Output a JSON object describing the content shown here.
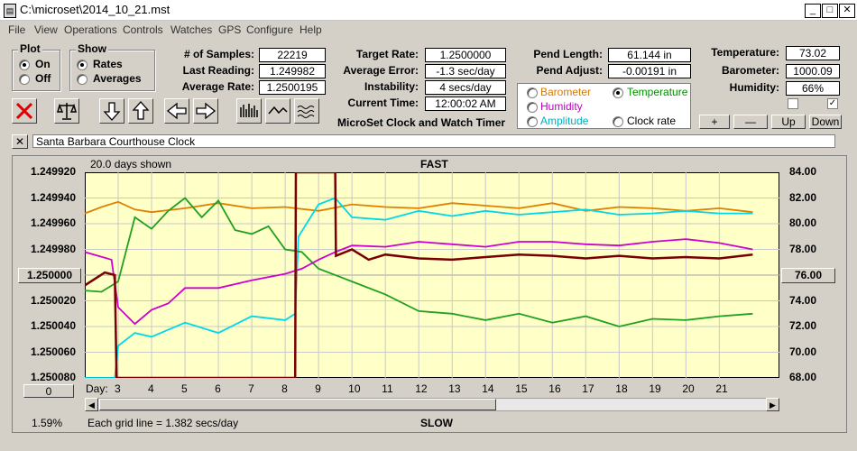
{
  "window": {
    "title": "C:\\microset\\2014_10_21.mst"
  },
  "menu": [
    "File",
    "View",
    "Operations",
    "Controls",
    "Watches",
    "GPS",
    "Configure",
    "Help"
  ],
  "plot_group": {
    "title": "Plot",
    "options": [
      "On",
      "Off"
    ],
    "selected": "On"
  },
  "show_group": {
    "title": "Show",
    "options": [
      "Rates",
      "Averages"
    ],
    "selected": "Rates"
  },
  "stats": {
    "samples_label": "# of Samples:",
    "samples": "22219",
    "last_label": "Last Reading:",
    "last": "1.249982",
    "avg_rate_label": "Average Rate:",
    "avg_rate": "1.2500195",
    "target_label": "Target Rate:",
    "target": "1.2500000",
    "avg_err_label": "Average Error:",
    "avg_err": "-1.3 sec/day",
    "instab_label": "Instability:",
    "instab": "4 secs/day",
    "time_label": "Current Time:",
    "time": "12:00:02 AM",
    "pend_len_label": "Pend Length:",
    "pend_len": "61.144 in",
    "pend_adj_label": "Pend Adjust:",
    "pend_adj": "-0.00191 in",
    "temp_label": "Temperature:",
    "temp": "73.02",
    "baro_label": "Barometer:",
    "baro": "1000.09",
    "hum_label": "Humidity:",
    "hum": "66%"
  },
  "app_caption": "MicroSet Clock and Watch Timer",
  "aux_options": [
    {
      "label": "Barometer",
      "color": "#d87800",
      "selected": false
    },
    {
      "label": "Temperature",
      "color": "#009000",
      "selected": true
    },
    {
      "label": "Humidity",
      "color": "#c000c0",
      "selected": false
    },
    {
      "label": "Clock rate",
      "color": "#000000",
      "selected": false
    },
    {
      "label": "Amplitude",
      "color": "#00b0c0",
      "selected": false
    }
  ],
  "small_buttons": {
    "plus": "+",
    "minus": "—",
    "up": "Up",
    "down": "Down"
  },
  "description": "Santa Barbara Courthouse Clock",
  "chart": {
    "days_shown": "20.0 days shown",
    "fast_label": "FAST",
    "slow_label": "SLOW",
    "grid_note": "Each grid line = 1.382 secs/day",
    "percent": "1.59%",
    "center_left": "1.250000",
    "center_right": "76.00",
    "zero_button": "0",
    "day_label": "Day:"
  },
  "chart_data": {
    "type": "line",
    "y_left_ticks": [
      "1.249920",
      "1.249940",
      "1.249960",
      "1.249980",
      "1.250000",
      "1.250020",
      "1.250040",
      "1.250060",
      "1.250080"
    ],
    "y_right_ticks": [
      "84.00",
      "82.00",
      "80.00",
      "78.00",
      "76.00",
      "74.00",
      "72.00",
      "70.00",
      "68.00"
    ],
    "x_ticks": [
      "3",
      "4",
      "5",
      "6",
      "7",
      "8",
      "9",
      "10",
      "11",
      "12",
      "13",
      "14",
      "15",
      "16",
      "17",
      "18",
      "19",
      "20",
      "21"
    ],
    "xlim": [
      2,
      22.8
    ],
    "y_left_range": [
      1.24992,
      1.25008
    ],
    "y_right_range": [
      68,
      84
    ],
    "series": [
      {
        "color": "#e08000",
        "values": [
          [
            2,
            80.8
          ],
          [
            2.5,
            81.3
          ],
          [
            3,
            81.7
          ],
          [
            3.5,
            81.1
          ],
          [
            4,
            80.9
          ],
          [
            5,
            81.2
          ],
          [
            6,
            81.6
          ],
          [
            7,
            81.2
          ],
          [
            8,
            81.3
          ],
          [
            9,
            81.0
          ],
          [
            10,
            81.5
          ],
          [
            11,
            81.3
          ],
          [
            12,
            81.2
          ],
          [
            13,
            81.6
          ],
          [
            14,
            81.4
          ],
          [
            15,
            81.2
          ],
          [
            16,
            81.6
          ],
          [
            17,
            81.0
          ],
          [
            18,
            81.3
          ],
          [
            19,
            81.2
          ],
          [
            20,
            81.0
          ],
          [
            21,
            81.2
          ],
          [
            22,
            80.9
          ]
        ]
      },
      {
        "color": "#00d8e8",
        "values": [
          [
            2,
            68.0
          ],
          [
            2.9,
            68.0
          ],
          [
            3,
            70.5
          ],
          [
            3.5,
            71.5
          ],
          [
            4,
            71.2
          ],
          [
            5,
            72.3
          ],
          [
            6,
            71.5
          ],
          [
            7,
            72.8
          ],
          [
            8,
            72.5
          ],
          [
            8.3,
            73.0
          ],
          [
            8.4,
            79.0
          ],
          [
            9,
            81.5
          ],
          [
            9.5,
            82.0
          ],
          [
            10,
            80.5
          ],
          [
            11,
            80.3
          ],
          [
            12,
            81.0
          ],
          [
            13,
            80.6
          ],
          [
            14,
            81.0
          ],
          [
            15,
            80.7
          ],
          [
            16,
            80.9
          ],
          [
            17,
            81.1
          ],
          [
            18,
            80.7
          ],
          [
            19,
            80.8
          ],
          [
            20,
            81.0
          ],
          [
            21,
            80.8
          ],
          [
            22,
            80.8
          ]
        ]
      },
      {
        "color": "#20a020",
        "values": [
          [
            2,
            74.8
          ],
          [
            2.5,
            74.7
          ],
          [
            3,
            75.5
          ],
          [
            3.5,
            80.5
          ],
          [
            4,
            79.6
          ],
          [
            4.5,
            81.0
          ],
          [
            5,
            82.0
          ],
          [
            5.5,
            80.5
          ],
          [
            6,
            81.8
          ],
          [
            6.5,
            79.5
          ],
          [
            7,
            79.2
          ],
          [
            7.5,
            79.8
          ],
          [
            8,
            78.0
          ],
          [
            8.5,
            77.8
          ],
          [
            9,
            76.5
          ],
          [
            10,
            75.5
          ],
          [
            11,
            74.5
          ],
          [
            12,
            73.2
          ],
          [
            13,
            73.0
          ],
          [
            14,
            72.5
          ],
          [
            15,
            73.0
          ],
          [
            16,
            72.3
          ],
          [
            17,
            72.8
          ],
          [
            18,
            72.0
          ],
          [
            19,
            72.6
          ],
          [
            20,
            72.5
          ],
          [
            21,
            72.8
          ],
          [
            22,
            73.0
          ]
        ]
      },
      {
        "color": "#d000d0",
        "values": [
          [
            2,
            77.8
          ],
          [
            2.8,
            77.2
          ],
          [
            3,
            73.5
          ],
          [
            3.5,
            72.2
          ],
          [
            4,
            73.3
          ],
          [
            4.5,
            73.8
          ],
          [
            5,
            75.0
          ],
          [
            6,
            75.0
          ],
          [
            7,
            75.6
          ],
          [
            8,
            76.1
          ],
          [
            8.5,
            76.5
          ],
          [
            9,
            77.2
          ],
          [
            9.5,
            77.8
          ],
          [
            10,
            78.3
          ],
          [
            11,
            78.2
          ],
          [
            12,
            78.6
          ],
          [
            13,
            78.4
          ],
          [
            14,
            78.2
          ],
          [
            15,
            78.6
          ],
          [
            16,
            78.6
          ],
          [
            17,
            78.4
          ],
          [
            18,
            78.3
          ],
          [
            19,
            78.6
          ],
          [
            20,
            78.8
          ],
          [
            21,
            78.5
          ],
          [
            22,
            78.0
          ]
        ]
      },
      {
        "color": "#780000",
        "values": [
          [
            2,
            75.2
          ],
          [
            2.6,
            76.2
          ],
          [
            2.9,
            76.0
          ],
          [
            2.95,
            68.0
          ],
          [
            8.3,
            68.0
          ],
          [
            8.32,
            84.0
          ],
          [
            9.5,
            84.0
          ],
          [
            9.52,
            77.5
          ],
          [
            10,
            78.0
          ],
          [
            10.5,
            77.2
          ],
          [
            11,
            77.6
          ],
          [
            12,
            77.3
          ],
          [
            13,
            77.2
          ],
          [
            14,
            77.4
          ],
          [
            15,
            77.6
          ],
          [
            16,
            77.5
          ],
          [
            17,
            77.3
          ],
          [
            18,
            77.5
          ],
          [
            19,
            77.3
          ],
          [
            20,
            77.4
          ],
          [
            21,
            77.3
          ],
          [
            22,
            77.6
          ]
        ]
      }
    ]
  }
}
